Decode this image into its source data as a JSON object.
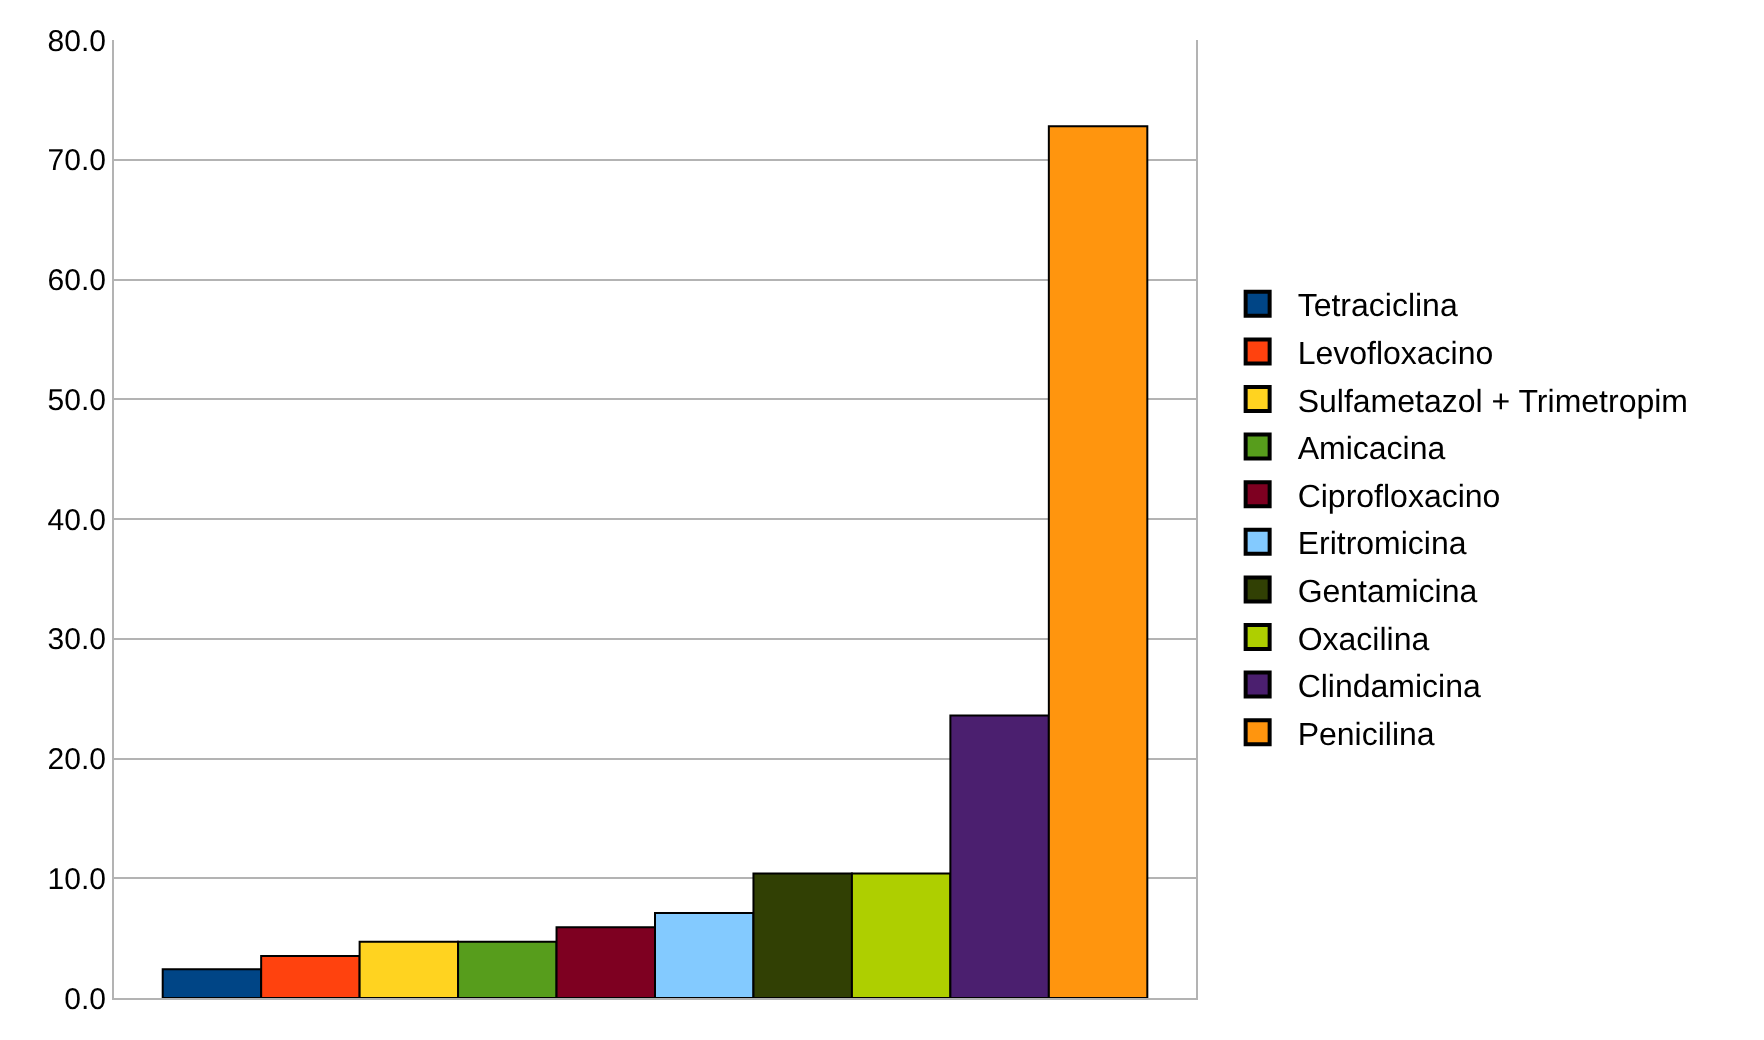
{
  "chart_data": {
    "type": "bar",
    "categories": [
      null
    ],
    "series": [
      {
        "name": "Tetraciclina",
        "color": "#004586",
        "values": [
          2.4
        ]
      },
      {
        "name": "Levofloxacino",
        "color": "#ff420e",
        "values": [
          3.5
        ]
      },
      {
        "name": "Sulfametazol + Trimetropim",
        "color": "#ffd320",
        "values": [
          4.7
        ]
      },
      {
        "name": "Amicacina",
        "color": "#579d1c",
        "values": [
          4.7
        ]
      },
      {
        "name": "Ciprofloxacino",
        "color": "#7e0021",
        "values": [
          5.9
        ]
      },
      {
        "name": "Eritromicina",
        "color": "#83caff",
        "values": [
          7.1
        ]
      },
      {
        "name": "Gentamicina",
        "color": "#314004",
        "values": [
          10.4
        ]
      },
      {
        "name": "Oxacilina",
        "color": "#aecf00",
        "values": [
          10.4
        ]
      },
      {
        "name": "Clindamicina",
        "color": "#4b1f6f",
        "values": [
          23.6
        ]
      },
      {
        "name": "Penicilina",
        "color": "#ff950e",
        "values": [
          72.8
        ]
      }
    ],
    "ylim": [
      0,
      80
    ],
    "yticks": [
      {
        "value": 0,
        "label": "0.0"
      },
      {
        "value": 10,
        "label": "10.0"
      },
      {
        "value": 20,
        "label": "20.0"
      },
      {
        "value": 30,
        "label": "30.0"
      },
      {
        "value": 40,
        "label": "40.0"
      },
      {
        "value": 50,
        "label": "50.0"
      },
      {
        "value": 60,
        "label": "60.0"
      },
      {
        "value": 70,
        "label": "70.0"
      },
      {
        "value": 80,
        "label": "80.0"
      }
    ],
    "grid": "y",
    "legend": "right",
    "tick_labels": "y"
  }
}
